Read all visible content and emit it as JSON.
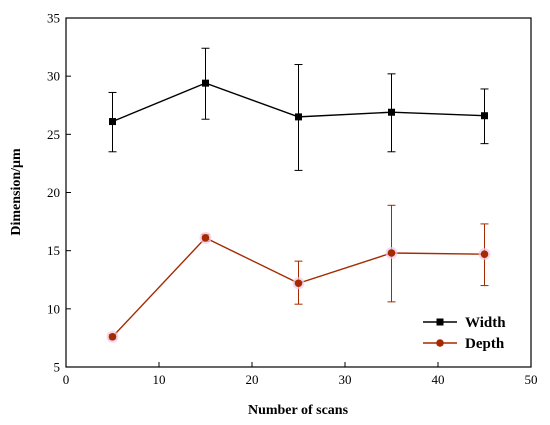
{
  "chart_data": {
    "type": "line",
    "xlabel": "Number of scans",
    "ylabel": "Dimension/μm",
    "xlim": [
      0,
      50
    ],
    "ylim": [
      5,
      35
    ],
    "xticks": [
      0,
      10,
      20,
      30,
      40,
      50
    ],
    "yticks": [
      5,
      10,
      15,
      20,
      25,
      30,
      35
    ],
    "grid": false,
    "legend_position": "bottom-right",
    "x": [
      5,
      15,
      25,
      35,
      45
    ],
    "series": [
      {
        "name": "Width",
        "color": "#000000",
        "marker": "square",
        "values": [
          26.1,
          29.4,
          26.5,
          26.9,
          26.6
        ],
        "error_low": [
          23.5,
          26.3,
          21.9,
          23.5,
          24.2
        ],
        "error_high": [
          28.6,
          32.4,
          31.0,
          30.2,
          28.9
        ]
      },
      {
        "name": "Depth",
        "color": "#a52a00",
        "marker": "circle",
        "values": [
          7.6,
          16.1,
          12.2,
          14.8,
          14.7
        ],
        "error_low": [
          7.4,
          15.8,
          10.4,
          10.6,
          12.0
        ],
        "error_high": [
          7.8,
          16.4,
          14.1,
          18.9,
          17.3
        ]
      }
    ]
  }
}
